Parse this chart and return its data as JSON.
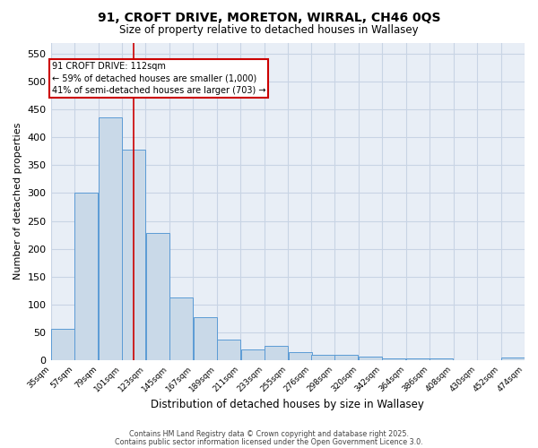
{
  "title": "91, CROFT DRIVE, MORETON, WIRRAL, CH46 0QS",
  "subtitle": "Size of property relative to detached houses in Wallasey",
  "xlabel": "Distribution of detached houses by size in Wallasey",
  "ylabel": "Number of detached properties",
  "bar_color": "#c9d9e8",
  "bar_edge_color": "#5b9bd5",
  "grid_color": "#c8d4e4",
  "background_color": "#e8eef6",
  "annotation_line1": "91 CROFT DRIVE: 112sqm",
  "annotation_line2": "← 59% of detached houses are smaller (1,000)",
  "annotation_line3": "41% of semi-detached houses are larger (703) →",
  "vline_x": 112,
  "vline_color": "#cc0000",
  "bin_edges": [
    35,
    57,
    79,
    101,
    123,
    145,
    167,
    189,
    211,
    233,
    255,
    276,
    298,
    320,
    342,
    364,
    386,
    408,
    430,
    452,
    474
  ],
  "bin_labels": [
    "35sqm",
    "57sqm",
    "79sqm",
    "101sqm",
    "123sqm",
    "145sqm",
    "167sqm",
    "189sqm",
    "211sqm",
    "233sqm",
    "255sqm",
    "276sqm",
    "298sqm",
    "320sqm",
    "342sqm",
    "364sqm",
    "386sqm",
    "408sqm",
    "430sqm",
    "452sqm",
    "474sqm"
  ],
  "counts": [
    57,
    300,
    435,
    378,
    228,
    113,
    77,
    37,
    20,
    25,
    14,
    10,
    10,
    7,
    4,
    4,
    4,
    0,
    0,
    5
  ],
  "ylim": [
    0,
    570
  ],
  "yticks": [
    0,
    50,
    100,
    150,
    200,
    250,
    300,
    350,
    400,
    450,
    500,
    550
  ],
  "footer1": "Contains HM Land Registry data © Crown copyright and database right 2025.",
  "footer2": "Contains public sector information licensed under the Open Government Licence 3.0."
}
